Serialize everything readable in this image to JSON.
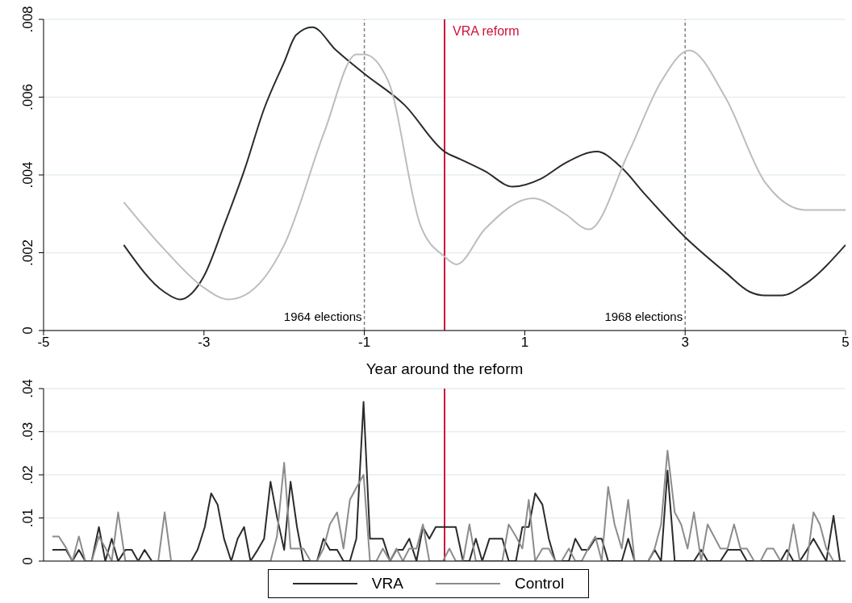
{
  "chart_data": [
    {
      "type": "line",
      "xlabel": "Year around the reform",
      "xlim": [
        -5,
        5
      ],
      "xticks": [
        -5,
        -3,
        -1,
        1,
        3,
        5
      ],
      "ylim": [
        0,
        0.008
      ],
      "yticks": [
        {
          "value": 0,
          "label": "0"
        },
        {
          "value": 0.002,
          "label": ".002"
        },
        {
          "value": 0.004,
          "label": ".004"
        },
        {
          "value": 0.006,
          "label": ".006"
        },
        {
          "value": 0.008,
          "label": ".008"
        }
      ],
      "grid": "y",
      "line_style": "solid",
      "marker": "none",
      "series": [
        {
          "color": "#2b2b2b",
          "x": [
            -4,
            -3.5,
            -3.3,
            -3,
            -2.75,
            -2.5,
            -2.25,
            -2,
            -1.85,
            -1.65,
            -1.35,
            -1,
            -0.5,
            0,
            0.2,
            0.5,
            0.85,
            1.2,
            1.5,
            1.9,
            2.2,
            2.5,
            3,
            3.5,
            3.8,
            4,
            4.2,
            4.5,
            5
          ],
          "values": [
            0.0022,
            0.001,
            0.0008,
            0.0014,
            0.0027,
            0.0041,
            0.0057,
            0.0069,
            0.0076,
            0.0078,
            0.0072,
            0.0066,
            0.0058,
            0.0046,
            0.0044,
            0.0041,
            0.0037,
            0.0039,
            0.0043,
            0.0046,
            0.0042,
            0.0035,
            0.0024,
            0.0015,
            0.001,
            0.0009,
            0.0009,
            0.0012,
            0.0022
          ]
        },
        {
          "color": "#bdbdbd",
          "x": [
            -4,
            -3.5,
            -3,
            -2.7,
            -2.5,
            -2,
            -1.5,
            -1.1,
            -1,
            -0.7,
            -0.3,
            0,
            0.15,
            0.5,
            1.1,
            1.5,
            1.8,
            2.3,
            2.7,
            3.05,
            3.5,
            4,
            4.5,
            5
          ],
          "values": [
            0.0033,
            0.0021,
            0.0011,
            0.0008,
            0.0009,
            0.0022,
            0.0051,
            0.0071,
            0.0071,
            0.0064,
            0.0027,
            0.0019,
            0.0017,
            0.0026,
            0.0034,
            0.003,
            0.0026,
            0.0046,
            0.0064,
            0.0072,
            0.006,
            0.0038,
            0.0031,
            0.0031
          ]
        }
      ],
      "ref_lines": [
        {
          "axis": "x",
          "value": -1,
          "label": "1964 elections",
          "color": "#808080",
          "line_style": "dashed"
        },
        {
          "axis": "x",
          "value": 0,
          "label": "VRA reform",
          "color": "#d0103a",
          "line_style": "solid"
        },
        {
          "axis": "x",
          "value": 3,
          "label": "1968 elections",
          "color": "#808080",
          "line_style": "dashed"
        }
      ]
    },
    {
      "type": "line",
      "xlim": [
        -5,
        5
      ],
      "tick_labels": "y",
      "ylim": [
        0,
        0.04
      ],
      "yticks": [
        {
          "value": 0,
          "label": "0"
        },
        {
          "value": 0.01,
          "label": ".01"
        },
        {
          "value": 0.02,
          "label": ".02"
        },
        {
          "value": 0.03,
          "label": ".03"
        },
        {
          "value": 0.04,
          "label": ".04"
        }
      ],
      "grid": "y",
      "legend": "bottom",
      "line_style": "solid",
      "marker": "none",
      "x": [
        -4.89,
        -4.81,
        -4.72,
        -4.64,
        -4.56,
        -4.48,
        -4.4,
        -4.31,
        -4.23,
        -4.15,
        -4.07,
        -3.98,
        -3.9,
        -3.82,
        -3.74,
        -3.65,
        -3.57,
        -3.49,
        -3.41,
        -3.32,
        -3.24,
        -3.16,
        -3.08,
        -2.99,
        -2.91,
        -2.83,
        -2.75,
        -2.66,
        -2.58,
        -2.5,
        -2.42,
        -2.33,
        -2.25,
        -2.17,
        -2.09,
        -2,
        -1.92,
        -1.84,
        -1.76,
        -1.67,
        -1.59,
        -1.51,
        -1.43,
        -1.34,
        -1.26,
        -1.18,
        -1.1,
        -1.01,
        -0.93,
        -0.85,
        -0.77,
        -0.68,
        -0.6,
        -0.52,
        -0.44,
        -0.35,
        -0.27,
        -0.19,
        -0.11,
        -0.02,
        0.06,
        0.14,
        0.23,
        0.31,
        0.39,
        0.47,
        0.56,
        0.64,
        0.72,
        0.8,
        0.89,
        0.97,
        1.05,
        1.13,
        1.22,
        1.3,
        1.38,
        1.46,
        1.55,
        1.63,
        1.71,
        1.79,
        1.88,
        1.96,
        2.04,
        2.12,
        2.21,
        2.29,
        2.37,
        2.45,
        2.54,
        2.62,
        2.7,
        2.78,
        2.87,
        2.95,
        3.03,
        3.11,
        3.2,
        3.28,
        3.36,
        3.44,
        3.53,
        3.61,
        3.69,
        3.77,
        3.86,
        3.94,
        4.02,
        4.1,
        4.19,
        4.27,
        4.35,
        4.43,
        4.52,
        4.6,
        4.68,
        4.76,
        4.85,
        4.93
      ],
      "series": [
        {
          "name": "VRA",
          "color": "#2b2b2b",
          "values": [
            0.0026,
            0.0026,
            0.0026,
            0,
            0.0026,
            0,
            0,
            0.0079,
            0,
            0.0052,
            0,
            0.0026,
            0.0026,
            0,
            0.0026,
            0,
            0,
            0,
            0,
            0,
            0,
            0,
            0.0026,
            0.0079,
            0.0157,
            0.0131,
            0.0052,
            0,
            0.0052,
            0.0079,
            0,
            0.0026,
            0.0052,
            0.0184,
            0.0103,
            0.0026,
            0.0184,
            0.0079,
            0,
            0,
            0,
            0.0052,
            0.0026,
            0.0026,
            0,
            0,
            0.0052,
            0.0369,
            0.0052,
            0.0052,
            0.0052,
            0,
            0.0026,
            0.0026,
            0.0052,
            0,
            0.0079,
            0.0052,
            0.0079,
            0.0079,
            0.0079,
            0.0079,
            0,
            0,
            0.0052,
            0,
            0.0052,
            0.0052,
            0.0052,
            0,
            0,
            0.0079,
            0.0079,
            0.0157,
            0.0131,
            0.0052,
            0,
            0,
            0,
            0.0052,
            0.0026,
            0.0026,
            0.0052,
            0.0052,
            0,
            0,
            0,
            0.0052,
            0,
            0,
            0,
            0.0026,
            0,
            0.021,
            0,
            0,
            0,
            0,
            0.0026,
            0,
            0,
            0,
            0.0026,
            0.0026,
            0.0026,
            0,
            0,
            0,
            0,
            0,
            0,
            0.0026,
            0,
            0,
            0.0026,
            0.0052,
            0.0026,
            0,
            0.0105,
            0
          ]
        },
        {
          "name": "Control",
          "color": "#8c8c8c",
          "values": [
            0.0057,
            0.0057,
            0.0031,
            0,
            0.0057,
            0,
            0,
            0.0057,
            0.0031,
            0,
            0.0113,
            0,
            0,
            0,
            0,
            0,
            0,
            0.0113,
            0,
            0,
            0,
            0,
            0,
            0,
            0,
            0,
            0,
            0,
            0,
            0,
            0,
            0,
            0,
            0,
            0.0057,
            0.0228,
            0.0029,
            0.0029,
            0.0029,
            0,
            0,
            0.0029,
            0.0085,
            0.0113,
            0.0029,
            0.0142,
            0.017,
            0.02,
            0,
            0,
            0.0029,
            0,
            0.0029,
            0,
            0.0029,
            0.0029,
            0.0085,
            0,
            0,
            0,
            0.0029,
            0,
            0,
            0.0085,
            0,
            0,
            0,
            0,
            0,
            0.0085,
            0.0057,
            0.0029,
            0.0142,
            0,
            0.0029,
            0.0029,
            0,
            0,
            0.0029,
            0,
            0,
            0.0029,
            0.0057,
            0,
            0.0172,
            0.0085,
            0.0029,
            0.0142,
            0,
            0,
            0,
            0.0029,
            0.0085,
            0.0256,
            0.0113,
            0.0085,
            0.0029,
            0.0113,
            0,
            0.0085,
            0.0057,
            0.0029,
            0.0029,
            0.0085,
            0.0029,
            0.0029,
            0,
            0,
            0.0029,
            0.0029,
            0,
            0,
            0.0085,
            0,
            0,
            0.0113,
            0.0085,
            0.0029,
            0,
            0
          ]
        }
      ],
      "ref_lines": [
        {
          "axis": "x",
          "value": 0,
          "color": "#d0103a",
          "line_style": "solid"
        }
      ]
    }
  ]
}
